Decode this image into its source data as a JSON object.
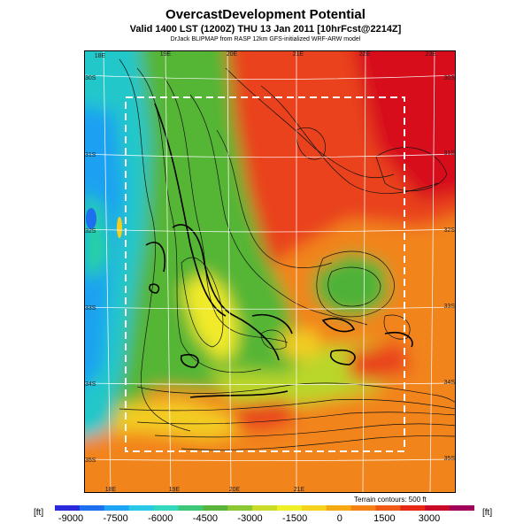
{
  "title": "OvercastDevelopment Potential",
  "subtitle": "Valid 1400 LST (1200Z) THU 13 Jan 2011 [10hrFcst@2214Z]",
  "credit": "DrJack BLIPMAP from RASP 12km GFS-initialized WRF-ARW model",
  "lon_labels_top": [
    "18E",
    "19E",
    "20E",
    "21E",
    "22E",
    "23E"
  ],
  "lon_labels_bottom": [
    "18E",
    "19E",
    "20E",
    "21E"
  ],
  "lat_labels_left": [
    "30S",
    "31S",
    "32S",
    "33S",
    "34S",
    "35S"
  ],
  "lat_labels_right": [
    "30S",
    "31S",
    "32S",
    "33S",
    "34S",
    "35S"
  ],
  "contour_note": "Terrain contours: 500 ft",
  "colorbar": {
    "unit_left": "[ft]",
    "unit_right": "[ft]",
    "tick_labels": [
      "-9000",
      "-7500",
      "-6000",
      "-4500",
      "-3000",
      "-1500",
      "0",
      "1500",
      "3000"
    ],
    "colors": [
      "#2a2adc",
      "#1e6ef0",
      "#1ea5f5",
      "#28c8e6",
      "#32d7be",
      "#3cc878",
      "#5ab43c",
      "#8cc832",
      "#c8dc28",
      "#f0f028",
      "#f5d21e",
      "#f5aa14",
      "#f58214",
      "#f05a14",
      "#e62814",
      "#c80a28",
      "#a0005a"
    ]
  }
}
